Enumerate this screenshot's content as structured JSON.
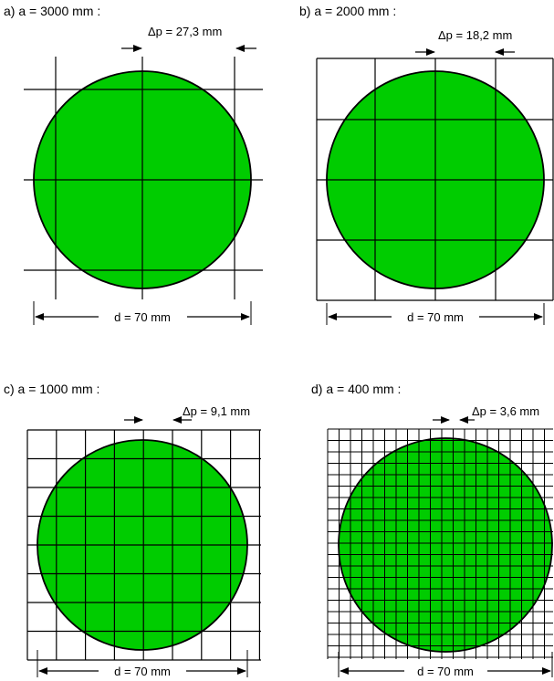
{
  "colors": {
    "disc_fill": "#00cc00",
    "stroke": "#000000",
    "background": "#ffffff"
  },
  "panels": [
    {
      "id": "a",
      "title": "a)  a = 3000 mm :",
      "spacing_label": "Δp = 27,3 mm",
      "diameter_label": "d = 70 mm",
      "diameter_mm": 70,
      "pitch_mm": 27.3,
      "grid": "lines"
    },
    {
      "id": "b",
      "title": "b)  a = 2000 mm :",
      "spacing_label": "Δp = 18,2 mm",
      "diameter_label": "d = 70 mm",
      "diameter_mm": 70,
      "pitch_mm": 18.2,
      "grid": "boxed"
    },
    {
      "id": "c",
      "title": "c)  a = 1000 mm :",
      "spacing_label": "Δp = 9,1 mm",
      "diameter_label": "d = 70 mm",
      "diameter_mm": 70,
      "pitch_mm": 9.1,
      "grid": "boxed"
    },
    {
      "id": "d",
      "title": "d)  a = 400 mm :",
      "spacing_label": "Δp = 3,6 mm",
      "diameter_label": "d = 70 mm",
      "diameter_mm": 70,
      "pitch_mm": 3.6,
      "grid": "boxed"
    }
  ]
}
